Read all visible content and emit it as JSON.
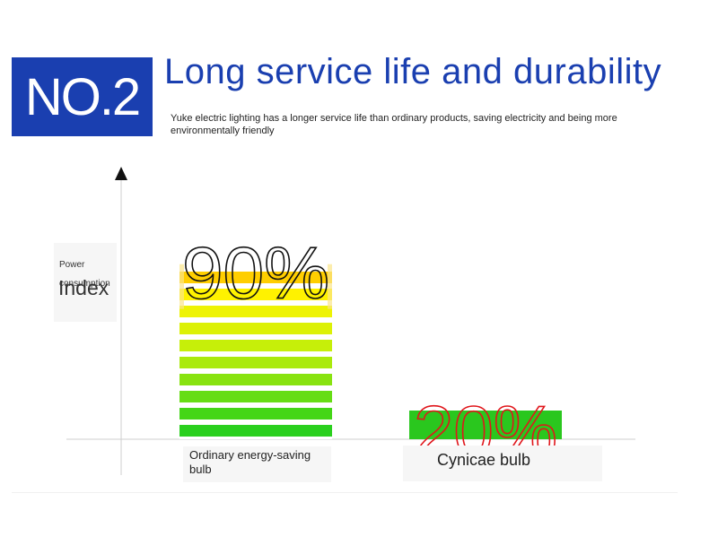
{
  "header": {
    "badge": "NO.2",
    "title": "Long service life and durability",
    "subtitle": "Yuke electric lighting has a longer service life than ordinary products, saving electricity and being more environmentally friendly"
  },
  "chart_data": {
    "type": "bar",
    "ylabel_small": "Power consumption",
    "ylabel_big": "Index",
    "categories": [
      "Ordinary energy-saving bulb",
      "Cynicae bulb"
    ],
    "values": [
      90,
      20
    ],
    "value_labels": [
      "90%",
      "20%"
    ],
    "ylim": [
      0,
      100
    ],
    "label_colors": [
      "#111111",
      "#e0161b"
    ],
    "bar_colors": [
      [
        "#2ad01e",
        "#44d617",
        "#66dd14",
        "#88e310",
        "#aaea0c",
        "#c6ef09",
        "#dcf106",
        "#eef304",
        "#fff200",
        "#ffce00"
      ],
      [
        "#2ac71e"
      ]
    ],
    "grid": false
  }
}
